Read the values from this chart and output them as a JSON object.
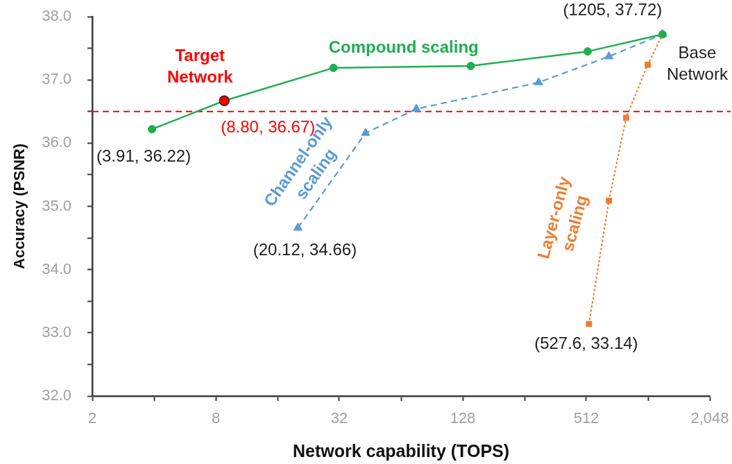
{
  "chart_data": {
    "type": "line",
    "xlabel": "Network capability (TOPS)",
    "ylabel": "Accuracy (PSNR)",
    "log": "x",
    "grid": false,
    "legend": false,
    "xlim": [
      2,
      2048
    ],
    "xticks": [
      2,
      {
        "value": 4,
        "label": null
      },
      8,
      {
        "value": 16,
        "label": null
      },
      32,
      {
        "value": 64,
        "label": null
      },
      128,
      {
        "value": 256,
        "label": null
      },
      512,
      {
        "value": 1024,
        "label": null
      },
      {
        "value": 2048,
        "label": "2,048"
      }
    ],
    "ylim": [
      32,
      38
    ],
    "yticks": [
      {
        "value": 32,
        "label": "32.0"
      },
      {
        "value": 32.5,
        "label": null
      },
      {
        "value": 33,
        "label": "33.0"
      },
      {
        "value": 33.5,
        "label": null
      },
      {
        "value": 34,
        "label": "34.0"
      },
      {
        "value": 34.5,
        "label": null
      },
      {
        "value": 35,
        "label": "35.0"
      },
      {
        "value": 35.5,
        "label": null
      },
      {
        "value": 36,
        "label": "36.0"
      },
      {
        "value": 36.5,
        "label": null
      },
      {
        "value": 37,
        "label": "37.0"
      },
      {
        "value": 37.5,
        "label": null
      },
      {
        "value": 38,
        "label": "38.0"
      }
    ],
    "series": [
      {
        "name": "Compound scaling",
        "color": "#1fae4f",
        "marker": "circle",
        "line_style": "solid",
        "x": [
          3.91,
          8.8,
          30,
          140,
          520,
          1205
        ],
        "values": [
          36.22,
          36.67,
          37.19,
          37.22,
          37.45,
          37.72
        ]
      },
      {
        "name": "Channel-only scaling",
        "color": "#5b9bd5",
        "marker": "triangle",
        "line_style": "dashed",
        "x": [
          20.12,
          43,
          76,
          300,
          660,
          1205
        ],
        "values": [
          34.66,
          36.16,
          36.54,
          36.96,
          37.37,
          37.72
        ]
      },
      {
        "name": "Layer-only scaling",
        "color": "#ed7d31",
        "marker": "square",
        "line_style": "dotted",
        "x": [
          527.6,
          660,
          800,
          1020,
          1205
        ],
        "values": [
          33.14,
          35.09,
          36.4,
          37.24,
          37.72
        ]
      },
      {
        "type": "scatter",
        "color": "#ff0000",
        "marker": "circle",
        "x": [
          8.8
        ],
        "values": [
          36.67
        ]
      }
    ],
    "ref_lines": [
      {
        "axis": "y",
        "value": 36.5,
        "color": "#ff0000",
        "line_style": "dashed"
      }
    ],
    "annotations": [
      {
        "text": "Target Network",
        "x": 8.8,
        "y": 36.67
      },
      {
        "text": "(8.80, 36.67)",
        "x": 8.8,
        "y": 36.67
      },
      {
        "text": "(3.91, 36.22)",
        "x": 3.91,
        "y": 36.22
      },
      {
        "text": "(20.12, 34.66)",
        "x": 20.12,
        "y": 34.66
      },
      {
        "text": "(527.6, 33.14)",
        "x": 527.6,
        "y": 33.14
      },
      {
        "text": "(1205, 37.72)",
        "x": 1205,
        "y": 37.72
      },
      {
        "text": "Base Network",
        "x": 1205,
        "y": 37.72
      }
    ]
  }
}
